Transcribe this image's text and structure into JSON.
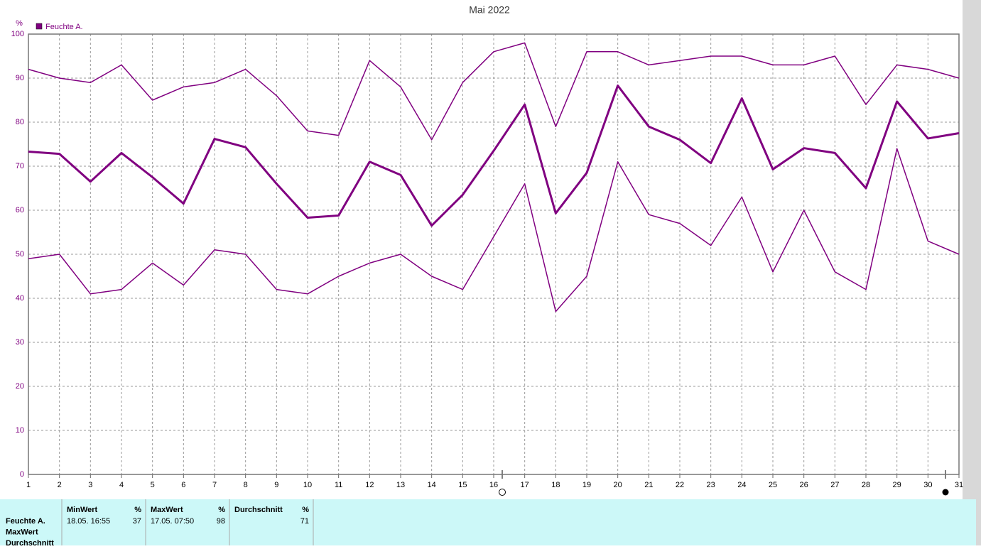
{
  "chart_data": {
    "type": "line",
    "title": "Mai 2022",
    "y_unit": "%",
    "legend_label": "Feuchte A.",
    "x": [
      1,
      2,
      3,
      4,
      5,
      6,
      7,
      8,
      9,
      10,
      11,
      12,
      13,
      14,
      15,
      16,
      17,
      18,
      19,
      20,
      21,
      22,
      23,
      24,
      25,
      26,
      27,
      28,
      29,
      30,
      31
    ],
    "xlim": [
      1,
      31
    ],
    "xticks": [
      1,
      2,
      3,
      4,
      5,
      6,
      7,
      8,
      9,
      10,
      11,
      12,
      13,
      14,
      15,
      16,
      17,
      18,
      19,
      20,
      21,
      22,
      23,
      24,
      25,
      26,
      27,
      28,
      29,
      30,
      31
    ],
    "ylim": [
      0,
      100
    ],
    "yticks": [
      0,
      10,
      20,
      30,
      40,
      50,
      60,
      70,
      80,
      90,
      100
    ],
    "grid": true,
    "series": [
      {
        "color": "#800080",
        "width": 1.5,
        "values": [
          92,
          90,
          89,
          93,
          85,
          88,
          89,
          92,
          86,
          78,
          77,
          94,
          88,
          76,
          89,
          96,
          98,
          79,
          96,
          96,
          93,
          94,
          95,
          95,
          93,
          93,
          95,
          84,
          93,
          92,
          90
        ]
      },
      {
        "color": "#800080",
        "width": 3,
        "values": [
          73.3,
          72.8,
          66.5,
          73,
          67.5,
          61.5,
          76.2,
          74.3,
          66,
          58.3,
          58.8,
          71,
          68,
          56.5,
          63.5,
          73.5,
          84,
          59.3,
          68.5,
          88.3,
          79,
          76,
          70.7,
          85.4,
          69.3,
          74.1,
          73,
          65,
          84.7,
          76.3,
          77.5
        ]
      },
      {
        "color": "#800080",
        "width": 1.5,
        "values": [
          49,
          50,
          41,
          42,
          48,
          43,
          51,
          50,
          42,
          41,
          45,
          48,
          50,
          45,
          42,
          54,
          66,
          37,
          45,
          71,
          59,
          57,
          52,
          63,
          46,
          60,
          46,
          42,
          74,
          53,
          50
        ]
      }
    ]
  },
  "table": {
    "row_labels": [
      "Feuchte A.",
      "MaxWert",
      "Durchschnitt"
    ],
    "columns": [
      {
        "header": "MinWert",
        "unit": "%",
        "time": "18.05.  16:55",
        "value": 37
      },
      {
        "header": "MaxWert",
        "unit": "%",
        "time": "17.05.  07:50",
        "value": 98
      },
      {
        "header": "Durchschnitt",
        "unit": "%",
        "value": 71
      }
    ]
  }
}
